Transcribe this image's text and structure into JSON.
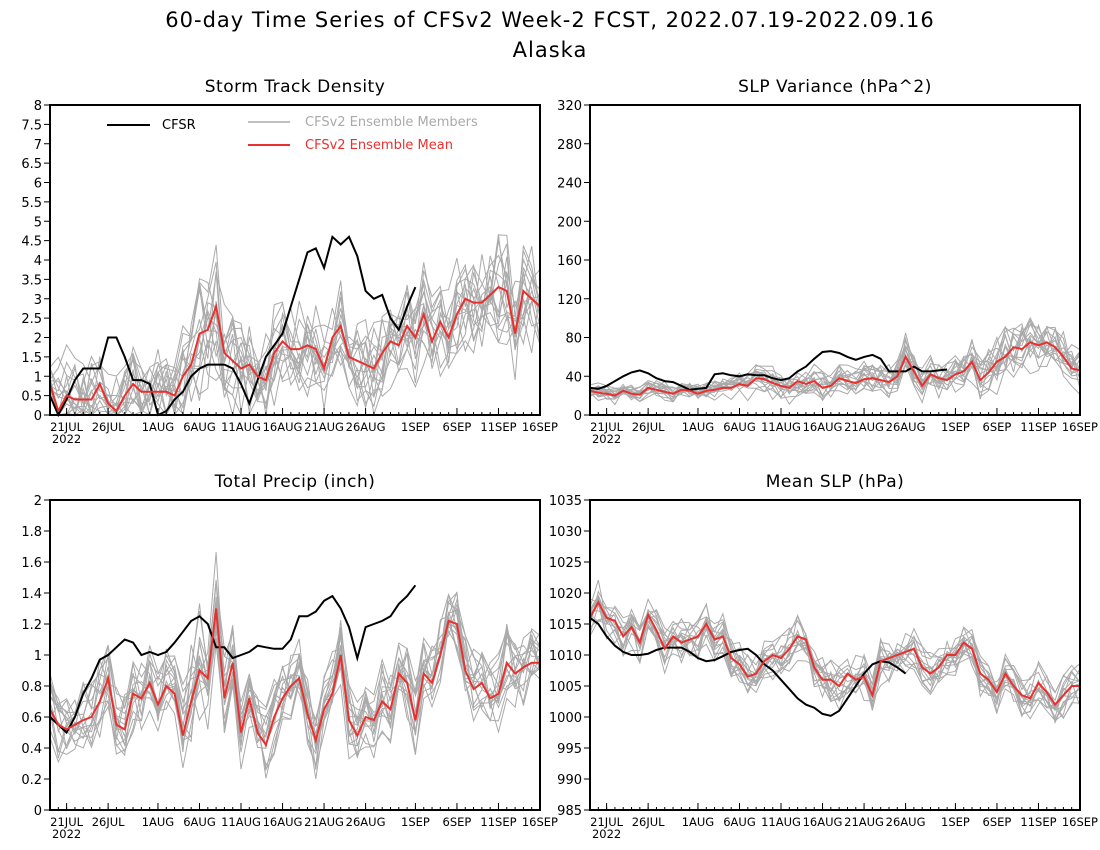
{
  "figure": {
    "title": "60-day Time Series of CFSv2 Week-2 FCST, 2022.07.19-2022.09.16",
    "subtitle": "Alaska"
  },
  "colors": {
    "cfsr": "#000000",
    "members": "#aaaaaa",
    "mean": "#e8312f",
    "axis": "#000000"
  },
  "x_axis": {
    "tick_labels": [
      "21JUL",
      "26JUL",
      "1AUG",
      "6AUG",
      "11AUG",
      "16AUG",
      "21AUG",
      "26AUG",
      "1SEP",
      "6SEP",
      "11SEP",
      "16SEP"
    ],
    "tick_days": [
      2,
      7,
      13,
      18,
      23,
      28,
      33,
      38,
      44,
      49,
      54,
      59
    ],
    "year_label": "2022",
    "day_range": [
      0,
      59
    ]
  },
  "legend": {
    "cfsr_label": "CFSR",
    "members_label": "CFSv2 Ensemble Members",
    "mean_label": "CFSv2 Ensemble Mean"
  },
  "chart_data": [
    {
      "type": "line",
      "title": "Storm Track Density",
      "ylim": [
        0,
        8
      ],
      "yticks": [
        0,
        0.5,
        1,
        1.5,
        2,
        2.5,
        3,
        3.5,
        4,
        4.5,
        5,
        5.5,
        6,
        6.5,
        7,
        7.5,
        8
      ],
      "ytick_labels": [
        "0",
        "0.5",
        "1",
        "1.5",
        "2",
        "2.5",
        "3",
        "3.5",
        "4",
        "4.5",
        "5",
        "5.5",
        "6",
        "6.5",
        "7",
        "7.5",
        "8"
      ],
      "legend_position": "top-left",
      "members_spread": [
        0.5,
        1.3,
        1.2,
        1.1,
        1.0,
        1.1,
        1.1,
        1.0,
        1.0,
        0.9,
        0.9,
        0.9,
        0.9,
        1.0,
        1.1,
        1.1,
        1.2,
        1.3,
        1.4,
        1.4,
        1.5,
        1.4,
        1.3,
        1.2,
        1.2,
        1.1,
        1.1,
        1.1,
        1.1,
        1.1,
        1.1,
        1.1,
        1.0,
        1.0,
        1.0,
        1.0,
        1.0,
        1.0,
        1.0,
        1.0,
        1.0,
        1.0,
        1.0,
        1.0,
        1.0,
        1.1,
        1.1,
        1.1,
        1.1,
        1.2,
        1.2,
        1.2,
        1.2,
        1.2,
        1.2,
        1.2,
        1.2,
        1.2,
        1.2,
        1.2
      ],
      "series": [
        {
          "name": "CFSR",
          "role": "cfsr",
          "values": [
            0.5,
            0.0,
            0.4,
            0.9,
            1.2,
            1.2,
            1.2,
            2.0,
            2.0,
            1.5,
            0.9,
            0.9,
            0.8,
            0.0,
            0.1,
            0.4,
            0.6,
            1.0,
            1.2,
            1.3,
            1.3,
            1.3,
            1.2,
            0.8,
            0.3,
            0.9,
            1.5,
            1.8,
            2.1,
            2.8,
            3.5,
            4.2,
            4.3,
            3.8,
            4.6,
            4.4,
            4.6,
            4.1,
            3.2,
            3.0,
            3.1,
            2.5,
            2.2,
            2.8,
            3.3
          ]
        },
        {
          "name": "CFSv2 Ensemble Mean",
          "role": "mean",
          "values": [
            0.8,
            0.1,
            0.5,
            0.4,
            0.4,
            0.4,
            0.8,
            0.3,
            0.1,
            0.5,
            0.8,
            0.6,
            0.6,
            0.6,
            0.6,
            0.5,
            1.0,
            1.3,
            2.1,
            2.2,
            2.8,
            1.6,
            1.4,
            1.2,
            1.3,
            1.0,
            0.9,
            1.6,
            1.9,
            1.7,
            1.7,
            1.8,
            1.7,
            1.2,
            2.0,
            2.3,
            1.5,
            1.4,
            1.3,
            1.2,
            1.6,
            1.9,
            1.8,
            2.3,
            2.0,
            2.6,
            1.9,
            2.4,
            2.0,
            2.6,
            3.0,
            2.9,
            2.9,
            3.1,
            3.3,
            3.2,
            2.1,
            3.2,
            3.0,
            2.8
          ]
        }
      ]
    },
    {
      "type": "line",
      "title": "SLP Variance (hPa^2)",
      "ylim": [
        0,
        320
      ],
      "yticks": [
        0,
        40,
        80,
        120,
        160,
        200,
        240,
        280,
        320
      ],
      "ytick_labels": [
        "0",
        "40",
        "80",
        "120",
        "160",
        "200",
        "240",
        "280",
        "320"
      ],
      "members_spread": [
        8,
        8,
        8,
        8,
        8,
        8,
        8,
        8,
        8,
        8,
        8,
        8,
        8,
        8,
        8,
        9,
        10,
        10,
        11,
        12,
        13,
        14,
        14,
        14,
        14,
        14,
        14,
        14,
        14,
        14,
        14,
        14,
        14,
        14,
        15,
        15,
        16,
        18,
        20,
        18,
        17,
        17,
        17,
        18,
        18,
        19,
        20,
        22,
        24,
        26,
        27,
        28,
        28,
        26,
        24,
        22,
        20,
        22,
        24,
        22
      ],
      "series": [
        {
          "name": "CFSR",
          "role": "cfsr",
          "values": [
            28,
            27,
            30,
            35,
            40,
            44,
            46,
            43,
            38,
            35,
            34,
            30,
            26,
            27,
            28,
            42,
            43,
            41,
            40,
            42,
            41,
            41,
            38,
            36,
            38,
            45,
            50,
            58,
            65,
            66,
            64,
            60,
            57,
            60,
            62,
            58,
            45,
            45,
            45,
            50,
            45,
            45,
            46,
            47
          ]
        },
        {
          "name": "CFSv2 Ensemble Mean",
          "role": "mean",
          "values": [
            25,
            23,
            22,
            20,
            25,
            22,
            21,
            28,
            26,
            24,
            22,
            26,
            25,
            22,
            25,
            26,
            28,
            28,
            32,
            30,
            38,
            37,
            33,
            30,
            28,
            35,
            32,
            35,
            28,
            30,
            38,
            35,
            33,
            37,
            38,
            36,
            34,
            40,
            60,
            45,
            30,
            42,
            38,
            36,
            42,
            45,
            55,
            36,
            44,
            55,
            60,
            70,
            68,
            75,
            72,
            75,
            70,
            60,
            48,
            46
          ]
        }
      ]
    },
    {
      "type": "line",
      "title": "Total Precip (inch)",
      "ylim": [
        0,
        2
      ],
      "yticks": [
        0,
        0.2,
        0.4,
        0.6,
        0.8,
        1,
        1.2,
        1.4,
        1.6,
        1.8,
        2
      ],
      "ytick_labels": [
        "0",
        "0.2",
        "0.4",
        "0.6",
        "0.8",
        "1",
        "1.2",
        "1.4",
        "1.6",
        "1.8",
        "2"
      ],
      "members_spread": [
        0.2,
        0.2,
        0.2,
        0.2,
        0.2,
        0.2,
        0.2,
        0.2,
        0.2,
        0.2,
        0.2,
        0.2,
        0.2,
        0.2,
        0.2,
        0.2,
        0.25,
        0.3,
        0.35,
        0.35,
        0.3,
        0.25,
        0.2,
        0.2,
        0.2,
        0.2,
        0.2,
        0.2,
        0.2,
        0.2,
        0.2,
        0.2,
        0.2,
        0.2,
        0.2,
        0.2,
        0.2,
        0.2,
        0.2,
        0.2,
        0.2,
        0.2,
        0.2,
        0.2,
        0.2,
        0.2,
        0.2,
        0.2,
        0.2,
        0.2,
        0.2,
        0.2,
        0.2,
        0.2,
        0.2,
        0.2,
        0.2,
        0.2,
        0.2,
        0.2
      ],
      "series": [
        {
          "name": "CFSR",
          "role": "cfsr",
          "values": [
            0.6,
            0.55,
            0.5,
            0.6,
            0.75,
            0.85,
            0.97,
            1.0,
            1.05,
            1.1,
            1.08,
            1.0,
            1.02,
            1.0,
            1.02,
            1.08,
            1.15,
            1.22,
            1.25,
            1.2,
            1.05,
            1.05,
            0.98,
            1.0,
            1.02,
            1.06,
            1.05,
            1.04,
            1.04,
            1.1,
            1.25,
            1.25,
            1.28,
            1.35,
            1.38,
            1.3,
            1.18,
            0.98,
            1.18,
            1.2,
            1.22,
            1.25,
            1.33,
            1.38,
            1.45
          ]
        },
        {
          "name": "CFSv2 Ensemble Mean",
          "role": "mean",
          "values": [
            0.65,
            0.55,
            0.52,
            0.55,
            0.58,
            0.6,
            0.7,
            0.85,
            0.55,
            0.52,
            0.75,
            0.72,
            0.82,
            0.68,
            0.8,
            0.75,
            0.48,
            0.7,
            0.9,
            0.85,
            1.3,
            0.72,
            0.95,
            0.5,
            0.72,
            0.5,
            0.42,
            0.6,
            0.72,
            0.8,
            0.85,
            0.62,
            0.45,
            0.65,
            0.75,
            1.0,
            0.58,
            0.48,
            0.6,
            0.58,
            0.7,
            0.65,
            0.88,
            0.82,
            0.58,
            0.88,
            0.82,
            1.0,
            1.22,
            1.2,
            0.9,
            0.78,
            0.82,
            0.72,
            0.75,
            0.95,
            0.88,
            0.92,
            0.95,
            0.95
          ]
        }
      ]
    },
    {
      "type": "line",
      "title": "Mean SLP (hPa)",
      "ylim": [
        985,
        1035
      ],
      "yticks": [
        985,
        990,
        995,
        1000,
        1005,
        1010,
        1015,
        1020,
        1025,
        1030,
        1035
      ],
      "ytick_labels": [
        "985",
        "990",
        "995",
        "1000",
        "1005",
        "1010",
        "1015",
        "1020",
        "1025",
        "1030",
        "1035"
      ],
      "members_spread": [
        3,
        3,
        3,
        3,
        3,
        3,
        3,
        3,
        3,
        3,
        3,
        3,
        3,
        3,
        3,
        3,
        3,
        3,
        3,
        3,
        3,
        3,
        3,
        3,
        3,
        3,
        3,
        3,
        3,
        3,
        3,
        3,
        3,
        3,
        3,
        3,
        3,
        3,
        3,
        3,
        3,
        3,
        3,
        3,
        3,
        3,
        3,
        3,
        3,
        3,
        3,
        3,
        3,
        3,
        3,
        3,
        3,
        3,
        3,
        3
      ],
      "series": [
        {
          "name": "CFSR",
          "role": "cfsr",
          "values": [
            1016,
            1015,
            1013,
            1011.5,
            1010.5,
            1010,
            1010,
            1010.2,
            1010.8,
            1011.2,
            1011.2,
            1011.2,
            1010.5,
            1009.5,
            1009,
            1009.2,
            1009.8,
            1010.5,
            1010.8,
            1011,
            1010,
            1008.5,
            1007.5,
            1006,
            1004.5,
            1003,
            1002,
            1001.5,
            1000.5,
            1000.2,
            1001,
            1003,
            1005,
            1007,
            1008.5,
            1009,
            1008.8,
            1008,
            1007
          ]
        },
        {
          "name": "CFSv2 Ensemble Mean",
          "role": "mean",
          "values": [
            1016,
            1018.5,
            1016,
            1015.5,
            1013,
            1014.5,
            1012,
            1016.5,
            1014,
            1011,
            1013,
            1012,
            1012.5,
            1013,
            1015,
            1012.5,
            1013,
            1009.5,
            1008.5,
            1006.5,
            1007,
            1009,
            1010,
            1009.5,
            1011,
            1013,
            1012.5,
            1008,
            1006,
            1006,
            1005,
            1007,
            1006,
            1006.5,
            1003.5,
            1009,
            1009.5,
            1010,
            1010.5,
            1011,
            1008,
            1007,
            1008,
            1010,
            1010,
            1012,
            1011,
            1007,
            1006,
            1004,
            1007,
            1005,
            1003.5,
            1003,
            1005.5,
            1004,
            1002,
            1003.5,
            1005,
            1005
          ]
        }
      ]
    }
  ]
}
